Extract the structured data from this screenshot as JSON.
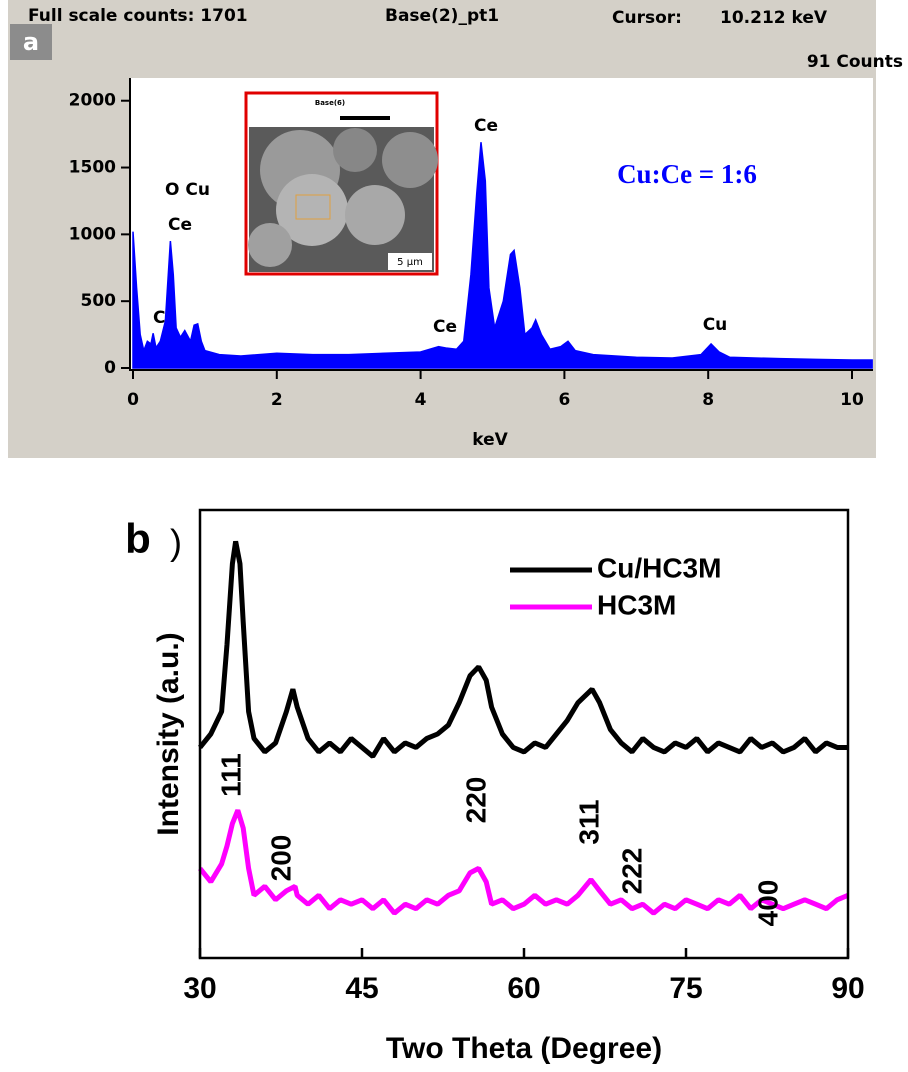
{
  "chart_data": [
    {
      "type": "area",
      "panel_label": "a",
      "header": {
        "counts": "Full scale counts: 1701",
        "name": "Base(2)_pt1",
        "cursor_label": "Cursor:",
        "cursor_energy": "10.212 keV",
        "cursor_counts": "91 Counts"
      },
      "x_label": "keV",
      "annotations": [
        "C",
        "O Cu",
        "Ce",
        "Ce",
        "Ce",
        "Cu",
        "Cu:Ce = 1:6"
      ],
      "inset_texts": [
        "Base(6)",
        "5 µm"
      ],
      "color": "#0000ff",
      "x": [
        0,
        0.05,
        0.1,
        0.15,
        0.2,
        0.25,
        0.28,
        0.32,
        0.38,
        0.45,
        0.52,
        0.56,
        0.6,
        0.66,
        0.72,
        0.8,
        0.85,
        0.9,
        0.95,
        1.0,
        1.2,
        1.5,
        2.0,
        2.5,
        3.0,
        3.5,
        4.0,
        4.25,
        4.35,
        4.5,
        4.6,
        4.7,
        4.78,
        4.84,
        4.9,
        4.95,
        5.03,
        5.15,
        5.25,
        5.3,
        5.38,
        5.45,
        5.55,
        5.6,
        5.68,
        5.8,
        5.95,
        6.05,
        6.15,
        6.4,
        7.0,
        7.5,
        7.9,
        8.04,
        8.15,
        8.3,
        9.0,
        9.5,
        10.0,
        10.28
      ],
      "values": [
        1020,
        600,
        250,
        130,
        200,
        180,
        260,
        150,
        200,
        350,
        950,
        700,
        300,
        230,
        280,
        200,
        320,
        330,
        200,
        130,
        100,
        90,
        110,
        100,
        100,
        110,
        120,
        160,
        150,
        140,
        200,
        700,
        1300,
        1690,
        1400,
        600,
        300,
        500,
        850,
        880,
        600,
        250,
        300,
        360,
        250,
        140,
        160,
        200,
        130,
        100,
        80,
        75,
        100,
        180,
        120,
        80,
        70,
        65,
        60,
        60
      ],
      "xlim": [
        0,
        10.3
      ],
      "ylim": [
        0,
        2170
      ],
      "xticks": [
        0,
        2,
        4,
        6,
        8,
        10
      ],
      "yticks": [
        0,
        500,
        1000,
        1500,
        2000
      ]
    },
    {
      "type": "line",
      "panel_label": "b",
      "bracket": ")",
      "x_label": "Two Theta (Degree)",
      "y_label": "Intensity (a.u.)",
      "annotations": [
        "111",
        "200",
        "220",
        "311",
        "222",
        "400"
      ],
      "legend": "upper right",
      "series": [
        {
          "name": "Cu/HC3M",
          "color": "#000000",
          "x": [
            30,
            31,
            32,
            32.5,
            33,
            33.3,
            33.7,
            34,
            34.5,
            35,
            36,
            37,
            38,
            38.6,
            39,
            40,
            41,
            42,
            43,
            44,
            45,
            46,
            47,
            48,
            49,
            50,
            51,
            52,
            53,
            54,
            55,
            55.8,
            56.5,
            57,
            58,
            59,
            60,
            61,
            62,
            63,
            64,
            65,
            66.3,
            67,
            68,
            69,
            70,
            71,
            72,
            73,
            74,
            75,
            76,
            77,
            78,
            79,
            80,
            81,
            82,
            83,
            84,
            85,
            86,
            87,
            88,
            89,
            90
          ],
          "values": [
            47,
            50,
            55,
            70,
            88,
            93,
            88,
            75,
            55,
            49,
            46,
            48,
            55,
            60,
            56,
            49,
            46,
            48,
            46,
            49,
            47,
            45,
            49,
            46,
            48,
            47,
            49,
            50,
            52,
            57,
            63,
            65,
            62,
            56,
            50,
            47,
            46,
            48,
            47,
            50,
            53,
            57,
            60,
            57,
            51,
            48,
            46,
            49,
            47,
            46,
            48,
            47,
            49,
            46,
            48,
            47,
            46,
            49,
            47,
            48,
            46,
            47,
            49,
            46,
            48,
            47,
            47
          ]
        },
        {
          "name": "HC3M",
          "color": "#ff00ff",
          "x": [
            30,
            31,
            32,
            32.5,
            33,
            33.5,
            34,
            34.5,
            35,
            36,
            37,
            38,
            38.8,
            39,
            40,
            41,
            42,
            43,
            44,
            45,
            46,
            47,
            48,
            49,
            50,
            51,
            52,
            53,
            54,
            55,
            55.8,
            56.5,
            57,
            58,
            59,
            60,
            61,
            62,
            63,
            64,
            65,
            66.2,
            67,
            68,
            69,
            70,
            71,
            72,
            73,
            74,
            75,
            76,
            77,
            78,
            79,
            80,
            81,
            82,
            83,
            84,
            85,
            86,
            87,
            88,
            89,
            90
          ],
          "values": [
            20,
            17,
            21,
            25,
            30,
            33,
            29,
            20,
            14,
            16,
            13,
            15,
            16,
            14,
            12,
            14,
            11,
            13,
            12,
            13,
            11,
            13,
            10,
            12,
            11,
            13,
            12,
            14,
            15,
            19,
            20,
            17,
            12,
            13,
            11,
            12,
            14,
            12,
            13,
            12,
            14,
            17.5,
            15,
            12,
            13,
            11,
            12,
            10,
            12,
            11,
            13,
            12,
            11,
            13,
            12,
            14,
            11,
            13,
            12,
            11,
            12,
            13,
            12,
            11,
            13,
            14
          ]
        }
      ],
      "xlim": [
        30,
        90
      ],
      "ylim": [
        0,
        100
      ],
      "xticks": [
        30,
        45,
        60,
        75,
        90
      ]
    }
  ]
}
